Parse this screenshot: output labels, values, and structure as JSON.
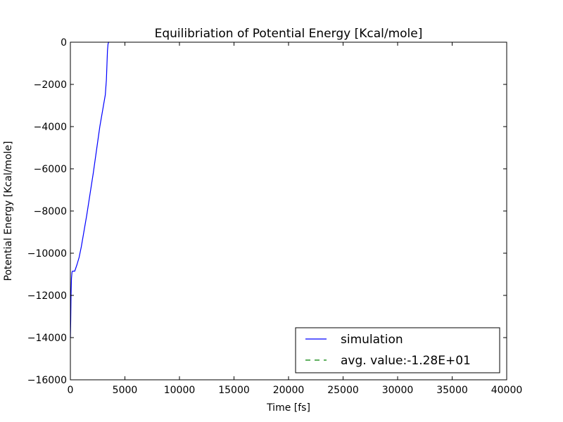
{
  "chart_data": {
    "type": "line",
    "title": "Equilibriation of Potential Energy [Kcal/mole]",
    "xlabel": "Time [fs]",
    "ylabel": "Potential Energy [Kcal/mole]",
    "xlim": [
      0,
      40000
    ],
    "ylim": [
      -16000,
      0
    ],
    "xticks": [
      0,
      5000,
      10000,
      15000,
      20000,
      25000,
      30000,
      35000,
      40000
    ],
    "xtick_labels": [
      "0",
      "5000",
      "10000",
      "15000",
      "20000",
      "25000",
      "30000",
      "35000",
      "40000"
    ],
    "yticks": [
      0,
      -2000,
      -4000,
      -6000,
      -8000,
      -10000,
      -12000,
      -14000,
      -16000
    ],
    "ytick_labels": [
      "0",
      "−2000",
      "−4000",
      "−6000",
      "−8000",
      "−10000",
      "−12000",
      "−14000",
      "−16000"
    ],
    "grid": false,
    "legend_position": "lower-right",
    "series": [
      {
        "name": "simulation",
        "color": "#0000ff",
        "style": "solid",
        "x": [
          0,
          30,
          60,
          100,
          150,
          200,
          300,
          400,
          500,
          600,
          800,
          1000,
          1200,
          1500,
          1800,
          2100,
          2400,
          2700,
          3000,
          3200,
          3300,
          3350,
          3400,
          3450,
          3500,
          3550
        ],
        "y": [
          -14000,
          -13200,
          -12000,
          -11200,
          -10900,
          -10850,
          -10850,
          -10850,
          -10700,
          -10550,
          -10200,
          -9700,
          -9100,
          -8200,
          -7200,
          -6200,
          -5100,
          -4000,
          -3100,
          -2500,
          -1800,
          -1100,
          -400,
          -100,
          0,
          0
        ]
      },
      {
        "name": "avg. value:-1.28E+01",
        "color": "#008000",
        "style": "dashed",
        "x": [],
        "y": []
      }
    ]
  }
}
